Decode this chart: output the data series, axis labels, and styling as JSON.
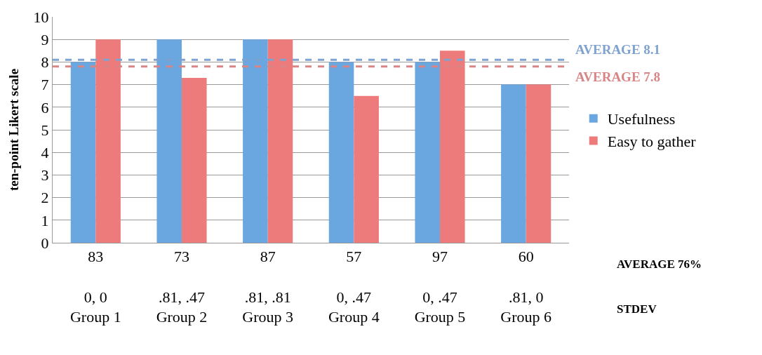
{
  "chart_data": {
    "type": "bar",
    "ylabel": "ten-point Likert scale",
    "categories": [
      "83\n\n0, 0\nGroup 1",
      "73\n\n.81, .47\nGroup 2",
      "87\n\n.81, .81\nGroup 3",
      "57\n\n0, .47\nGroup 4",
      "97\n\n0, .47\nGroup 5",
      "60\n\n.81, 0\nGroup 6"
    ],
    "series": [
      {
        "name": "Usefulness",
        "color": "#6aa6e0",
        "values": [
          8,
          9,
          9,
          8,
          8,
          7
        ]
      },
      {
        "name": "Easy to gather",
        "color": "#ee7b7b",
        "values": [
          9,
          7.3,
          9,
          6.5,
          8.5,
          7
        ]
      }
    ],
    "ylim": [
      0,
      10
    ],
    "yticks": [
      0,
      1,
      2,
      3,
      4,
      5,
      6,
      7,
      8,
      9,
      10
    ],
    "grid": "y",
    "legend": "right",
    "ref_lines": [
      {
        "axis": "y",
        "value": 8.1,
        "label": "AVERAGE 8.1",
        "color": "#7fa3d1",
        "line_style": "dashed"
      },
      {
        "axis": "y",
        "value": 7.8,
        "label": "AVERAGE 7.8",
        "color": "#d98585",
        "line_style": "dashed"
      }
    ],
    "annotations": [
      "AVERAGE 76%",
      "STDEV"
    ]
  }
}
